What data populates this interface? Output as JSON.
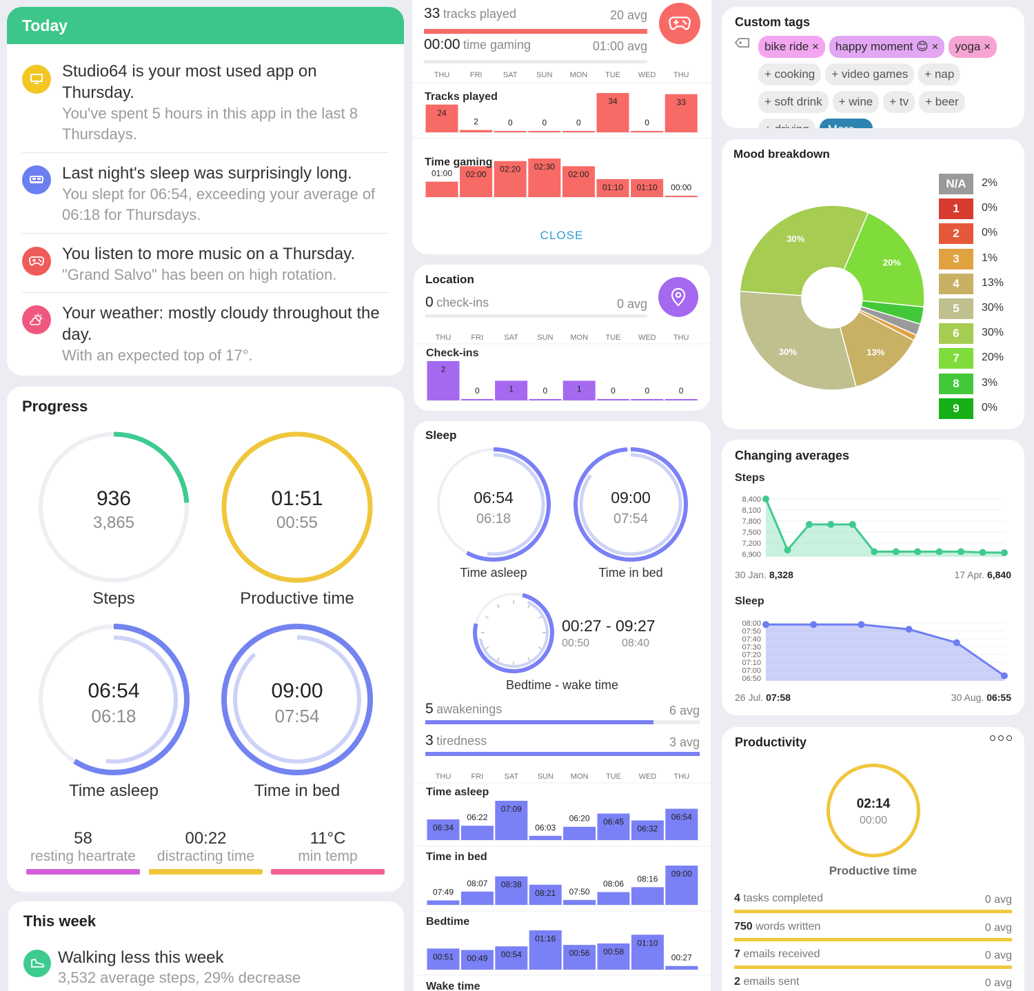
{
  "today": {
    "title": "Today",
    "notes": [
      {
        "icon": "monitor-icon",
        "color": "#f3c623",
        "main": "Studio64 is your most used app on Thursday.",
        "sub": "You've spent 5 hours in this app in the last 8 Thursdays."
      },
      {
        "icon": "bed-icon",
        "color": "#6b7ff0",
        "main": "Last night's sleep was surprisingly long.",
        "sub": "You slept for 06:54, exceeding your average of 06:18 for Thursdays."
      },
      {
        "icon": "gamepad-icon",
        "color": "#ef5b5b",
        "main": "You listen to more music on a Thursday.",
        "sub": "\"Grand Salvo\" has been on high rotation."
      },
      {
        "icon": "weather-icon",
        "color": "#f0577e",
        "main": "Your weather: mostly cloudy throughout the day.",
        "sub": "With an expected top of 17°."
      }
    ]
  },
  "progress": {
    "title": "Progress",
    "rings": [
      {
        "value": "936",
        "avg": "3,865",
        "label": "Steps",
        "color": "#3ecb90",
        "fraction": 0.24
      },
      {
        "value": "01:51",
        "avg": "00:55",
        "label": "Productive time",
        "color": "#f0c63c",
        "fraction": 1.0
      },
      {
        "value": "06:54",
        "avg": "06:18",
        "label": "Time asleep",
        "color": "#7383f0",
        "fraction": 0.59
      },
      {
        "value": "09:00",
        "avg": "07:54",
        "label": "Time in bed",
        "color": "#7383f0",
        "fraction": 1.0
      }
    ],
    "stats": [
      {
        "value": "58",
        "label": "resting heartrate",
        "color": "#d35ed8"
      },
      {
        "value": "00:22",
        "label": "distracting time",
        "color": "#f0c63c"
      },
      {
        "value": "11°C",
        "label": "min temp",
        "color": "#f3608d"
      }
    ]
  },
  "this_week": {
    "title": "This week",
    "main": "Walking less this week",
    "sub": "3,532 average steps, 29% decrease",
    "icon": "shoe-icon"
  },
  "days": [
    "THU",
    "FRI",
    "SAT",
    "SUN",
    "MON",
    "TUE",
    "WED",
    "THU"
  ],
  "music": {
    "tracks_num": "33",
    "tracks_label": "tracks played",
    "tracks_avg": "20 avg",
    "gaming_num": "00:00",
    "gaming_label": "time gaming",
    "gaming_avg": "01:00 avg",
    "tracks_title": "Tracks played",
    "tracks_values": [
      24,
      2,
      0,
      0,
      0,
      34,
      0,
      33
    ],
    "gaming_title": "Time gaming",
    "gaming_labels": [
      "01:00",
      "02:00",
      "02:20",
      "02:30",
      "02:00",
      "01:10",
      "01:10",
      "00:00"
    ],
    "gaming_minutes": [
      60,
      120,
      140,
      150,
      120,
      70,
      70,
      0
    ],
    "close_label": "CLOSE",
    "color": "#f86a66"
  },
  "location": {
    "title": "Location",
    "num": "0",
    "label": "check-ins",
    "avg": "0 avg",
    "chart_title": "Check-ins",
    "values": [
      2,
      0,
      1,
      0,
      1,
      0,
      0,
      0
    ],
    "color": "#a569f0"
  },
  "sleep": {
    "title": "Sleep",
    "rings": [
      {
        "value": "06:54",
        "avg": "06:18",
        "label": "Time asleep"
      },
      {
        "value": "09:00",
        "avg": "07:54",
        "label": "Time in bed"
      }
    ],
    "clock_range": "00:27 - 09:27",
    "clock_bed": "00:50",
    "clock_wake": "08:40",
    "clock_label": "Bedtime - wake time",
    "awak_num": "5",
    "awak_label": "awakenings",
    "awak_avg": "6 avg",
    "tired_num": "3",
    "tired_label": "tiredness",
    "tired_avg": "3 avg",
    "asleep_title": "Time asleep",
    "asleep_labels": [
      "06:34",
      "06:22",
      "07:09",
      "06:03",
      "06:20",
      "06:45",
      "06:32",
      "06:54"
    ],
    "asleep_minutes": [
      394,
      382,
      429,
      363,
      380,
      405,
      392,
      414
    ],
    "bed_title": "Time in bed",
    "bed_labels": [
      "07:49",
      "08:07",
      "08:38",
      "08:21",
      "07:50",
      "08:06",
      "08:16",
      "09:00"
    ],
    "bed_minutes": [
      469,
      487,
      518,
      501,
      470,
      486,
      496,
      540
    ],
    "bedtime_title": "Bedtime",
    "bedtime_labels": [
      "00:51",
      "00:49",
      "00:54",
      "01:16",
      "00:56",
      "00:58",
      "01:10",
      "00:27"
    ],
    "bedtime_minutes": [
      51,
      49,
      54,
      76,
      56,
      58,
      70,
      27
    ],
    "wake_title": "Wake time",
    "color": "#7a80f5"
  },
  "tags": {
    "title": "Custom tags",
    "active": [
      {
        "label": "bike ride",
        "color": "#f3a6f0"
      },
      {
        "label": "happy moment 😊",
        "color": "#e2a6f3"
      },
      {
        "label": "yoga",
        "color": "#f6a4d4"
      }
    ],
    "inactive": [
      "+ cooking",
      "+ video games",
      "+ nap",
      "+ soft drink",
      "+ wine",
      "+ tv",
      "+ beer",
      "+ driving"
    ],
    "more_label": "More..."
  },
  "mood": {
    "title": "Mood breakdown",
    "legend": [
      {
        "label": "N/A",
        "pct": "2%",
        "color": "#9a9a9a"
      },
      {
        "label": "1",
        "pct": "0%",
        "color": "#d83a2f"
      },
      {
        "label": "2",
        "pct": "0%",
        "color": "#e6583a"
      },
      {
        "label": "3",
        "pct": "1%",
        "color": "#e0a23f"
      },
      {
        "label": "4",
        "pct": "13%",
        "color": "#c8b164"
      },
      {
        "label": "5",
        "pct": "30%",
        "color": "#bfc08e"
      },
      {
        "label": "6",
        "pct": "30%",
        "color": "#a6cc52"
      },
      {
        "label": "7",
        "pct": "20%",
        "color": "#7fdc3a"
      },
      {
        "label": "8",
        "pct": "3%",
        "color": "#43c83a"
      },
      {
        "label": "9",
        "pct": "0%",
        "color": "#16b016"
      }
    ]
  },
  "averages": {
    "title": "Changing averages",
    "steps_title": "Steps",
    "steps_ticks": [
      "8,400",
      "8,100",
      "7,800",
      "7,500",
      "7,200",
      "6,900"
    ],
    "steps_values": [
      8400,
      6900,
      7650,
      7650,
      7650,
      6850,
      6850,
      6850,
      6850,
      6850,
      6830,
      6820
    ],
    "steps_start_date": "30 Jan.",
    "steps_start_val": "8,328",
    "steps_end_date": "17 Apr.",
    "steps_end_val": "6,840",
    "sleep_title": "Sleep",
    "sleep_ticks": [
      "08:00",
      "07:50",
      "07:40",
      "07:30",
      "07:20",
      "07:10",
      "07:00",
      "06:50"
    ],
    "sleep_values": [
      478,
      478,
      478,
      472,
      455,
      413
    ],
    "sleep_start_date": "26 Jul.",
    "sleep_start_val": "07:58",
    "sleep_end_date": "30 Aug.",
    "sleep_end_val": "06:55",
    "steps_color": "#3ecb90",
    "sleep_color": "#6d7ef0"
  },
  "productivity": {
    "title": "Productivity",
    "menu": "ooo",
    "value": "02:14",
    "avg": "00:00",
    "label": "Productive time",
    "rows": [
      {
        "num": "4",
        "label": "tasks completed",
        "avg": "0 avg"
      },
      {
        "num": "750",
        "label": "words written",
        "avg": "0 avg"
      },
      {
        "num": "7",
        "label": "emails received",
        "avg": "0 avg"
      },
      {
        "num": "2",
        "label": "emails sent",
        "avg": "0 avg"
      }
    ]
  }
}
